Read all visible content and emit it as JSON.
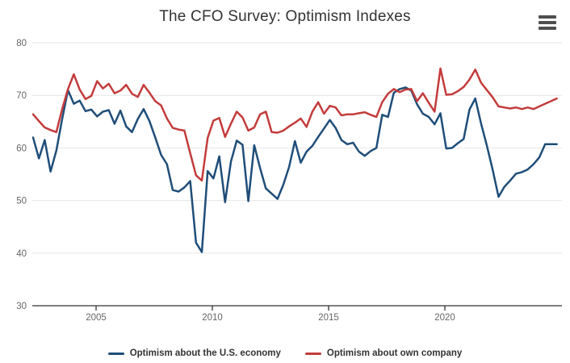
{
  "header": {
    "title": "The CFO Survey: Optimism Indexes",
    "menu_icon": "hamburger-icon"
  },
  "colors": {
    "economy_line": "#1f4e79",
    "company_line": "#c33c3c",
    "gridline": "#e6e6e6",
    "axis_line": "#333333",
    "tick_label": "#666666",
    "title_text": "#333333",
    "legend_text": "#333333",
    "background": "#ffffff"
  },
  "chart_data": {
    "type": "line",
    "title": "The CFO Survey: Optimism Indexes",
    "frequency": "quarterly",
    "x_start_quarter": "2002 Q2",
    "x_end_quarter": "2024 Q4",
    "x_ticks": [
      "2005",
      "2010",
      "2015",
      "2020"
    ],
    "y_ticks": [
      30,
      40,
      50,
      60,
      70,
      80
    ],
    "ylim": [
      30,
      80
    ],
    "grid": "horizontal",
    "legend_position": "bottom-center",
    "series": [
      {
        "name": "Optimism about the U.S. economy",
        "color": "#1f4e79",
        "values": [
          62,
          58,
          61.5,
          55.5,
          59.5,
          65.5,
          71,
          68.4,
          69,
          67,
          67.3,
          66,
          66.9,
          67.2,
          64.6,
          67.1,
          64.1,
          63,
          65.5,
          67.4,
          65.1,
          62,
          58.7,
          56.9,
          52,
          51.7,
          52.5,
          53.7,
          42,
          40.2,
          55.6,
          54.2,
          58.4,
          49.7,
          57.4,
          61.4,
          60.6,
          49.9,
          60.5,
          56.2,
          52.3,
          51.3,
          50.3,
          53,
          56.4,
          61.3,
          57.2,
          59.3,
          60.4,
          62.1,
          63.7,
          65.3,
          63.8,
          61.5,
          60.7,
          61,
          59.3,
          58.5,
          59.4,
          60,
          66.3,
          65.9,
          70.5,
          71.2,
          71.5,
          70.9,
          68.3,
          66.5,
          65.9,
          64.5,
          66.6,
          59.9,
          60,
          60.9,
          61.7,
          67.3,
          69.4,
          64.6,
          60.4,
          55.8,
          50.7,
          52.6,
          53.8,
          55.1,
          55.4,
          55.9,
          56.9,
          58.2,
          60.7,
          60.7,
          60.7
        ]
      },
      {
        "name": "Optimism about own company",
        "color": "#c33c3c",
        "values": [
          66.4,
          65.1,
          63.9,
          63.4,
          63,
          67.4,
          71.2,
          74,
          71.1,
          69.3,
          69.9,
          72.7,
          71.3,
          72.2,
          70.4,
          70.9,
          72,
          70.3,
          69.7,
          72,
          70.5,
          68.9,
          68.1,
          65.6,
          63.8,
          63.5,
          63.3,
          59,
          54.8,
          53.8,
          61.9,
          65.2,
          65.7,
          62.1,
          64.6,
          66.9,
          65.8,
          63.3,
          63.9,
          66.4,
          66.9,
          63,
          62.9,
          63.3,
          64.1,
          64.8,
          65.6,
          64,
          66.9,
          68.7,
          66.5,
          68,
          67.7,
          66.2,
          66.4,
          66.4,
          66.6,
          66.8,
          66.3,
          65.9,
          68.7,
          70.3,
          71.2,
          70.6,
          71.1,
          71.2,
          68.9,
          70.4,
          68.6,
          66.9,
          75.1,
          70.1,
          70.2,
          70.8,
          71.6,
          73,
          74.9,
          72.4,
          71,
          69.6,
          67.9,
          67.7,
          67.5,
          67.7,
          67.4,
          67.7,
          67.4,
          67.9,
          68.4,
          68.9,
          69.4
        ]
      }
    ]
  }
}
